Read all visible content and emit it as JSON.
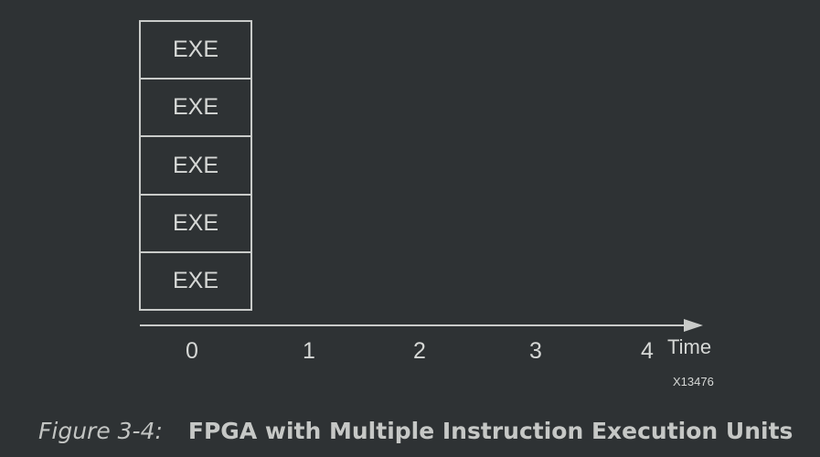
{
  "diagram": {
    "exe_units": [
      "EXE",
      "EXE",
      "EXE",
      "EXE",
      "EXE"
    ],
    "time_ticks": [
      "0",
      "1",
      "2",
      "3",
      "4"
    ],
    "axis_title": "Time",
    "figure_id": "X13476",
    "colors": {
      "background": "#2e3234",
      "line": "#c9cbc9",
      "text": "#d6d8d6"
    }
  },
  "caption": {
    "number": "Figure 3-4:",
    "title": "FPGA with Multiple Instruction Execution Units"
  }
}
